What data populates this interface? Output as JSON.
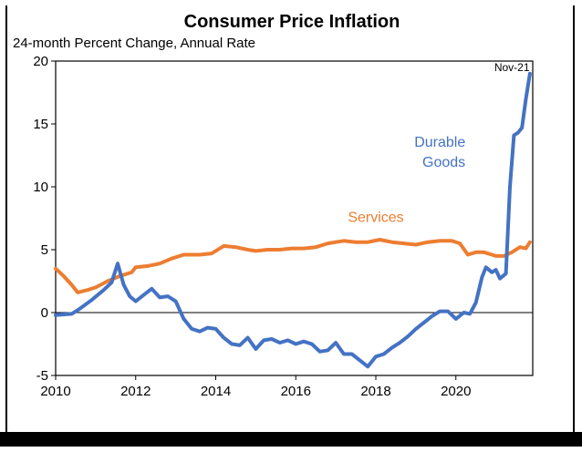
{
  "chart_data": {
    "type": "line",
    "title": "Consumer Price Inflation",
    "subtitle": "24-month Percent Change, Annual Rate",
    "xlabel": "",
    "ylabel": "",
    "xlim": [
      2010,
      2021.92
    ],
    "ylim": [
      -5,
      20
    ],
    "x_ticks": [
      "2010",
      "2012",
      "2014",
      "2016",
      "2018",
      "2020"
    ],
    "y_ticks": [
      "20",
      "15",
      "10",
      "5",
      "0",
      "-5"
    ],
    "grid": false,
    "zero_line": true,
    "annotations": [
      {
        "text": "Nov-21",
        "x": 2021.4,
        "y": 19.2
      },
      {
        "text": "Durable",
        "x": 2019.6,
        "y": 13.2,
        "series": "Durable Goods"
      },
      {
        "text": "Goods",
        "x": 2019.7,
        "y": 11.6,
        "series": "Durable Goods"
      },
      {
        "text": "Services",
        "x": 2018.0,
        "y": 7.2,
        "series": "Services"
      }
    ],
    "series": [
      {
        "name": "Durable Goods",
        "color": "#4472C4",
        "points": [
          [
            2010.0,
            -0.2
          ],
          [
            2010.4,
            -0.1
          ],
          [
            2010.6,
            0.3
          ],
          [
            2010.9,
            1.0
          ],
          [
            2011.2,
            1.8
          ],
          [
            2011.4,
            2.4
          ],
          [
            2011.55,
            3.9
          ],
          [
            2011.7,
            2.2
          ],
          [
            2011.85,
            1.3
          ],
          [
            2012.0,
            0.9
          ],
          [
            2012.2,
            1.4
          ],
          [
            2012.4,
            1.9
          ],
          [
            2012.6,
            1.2
          ],
          [
            2012.8,
            1.3
          ],
          [
            2013.0,
            0.9
          ],
          [
            2013.2,
            -0.5
          ],
          [
            2013.4,
            -1.3
          ],
          [
            2013.6,
            -1.5
          ],
          [
            2013.8,
            -1.2
          ],
          [
            2014.0,
            -1.3
          ],
          [
            2014.2,
            -2.0
          ],
          [
            2014.4,
            -2.5
          ],
          [
            2014.6,
            -2.6
          ],
          [
            2014.8,
            -2.0
          ],
          [
            2015.0,
            -2.9
          ],
          [
            2015.2,
            -2.2
          ],
          [
            2015.4,
            -2.1
          ],
          [
            2015.6,
            -2.4
          ],
          [
            2015.8,
            -2.2
          ],
          [
            2016.0,
            -2.5
          ],
          [
            2016.2,
            -2.3
          ],
          [
            2016.4,
            -2.5
          ],
          [
            2016.6,
            -3.1
          ],
          [
            2016.8,
            -3.0
          ],
          [
            2017.0,
            -2.4
          ],
          [
            2017.2,
            -3.3
          ],
          [
            2017.4,
            -3.3
          ],
          [
            2017.6,
            -3.8
          ],
          [
            2017.8,
            -4.3
          ],
          [
            2018.0,
            -3.5
          ],
          [
            2018.2,
            -3.3
          ],
          [
            2018.4,
            -2.8
          ],
          [
            2018.6,
            -2.4
          ],
          [
            2018.8,
            -1.9
          ],
          [
            2019.0,
            -1.3
          ],
          [
            2019.2,
            -0.8
          ],
          [
            2019.4,
            -0.3
          ],
          [
            2019.6,
            0.1
          ],
          [
            2019.8,
            0.1
          ],
          [
            2020.0,
            -0.5
          ],
          [
            2020.2,
            0.0
          ],
          [
            2020.35,
            -0.1
          ],
          [
            2020.5,
            0.8
          ],
          [
            2020.65,
            2.8
          ],
          [
            2020.75,
            3.6
          ],
          [
            2020.9,
            3.2
          ],
          [
            2021.0,
            3.4
          ],
          [
            2021.1,
            2.7
          ],
          [
            2021.25,
            3.1
          ],
          [
            2021.35,
            10.0
          ],
          [
            2021.45,
            14.1
          ],
          [
            2021.55,
            14.3
          ],
          [
            2021.65,
            14.7
          ],
          [
            2021.75,
            17.0
          ],
          [
            2021.85,
            19.0
          ]
        ]
      },
      {
        "name": "Services",
        "color": "#ED7D31",
        "points": [
          [
            2010.0,
            3.5
          ],
          [
            2010.2,
            2.9
          ],
          [
            2010.4,
            2.2
          ],
          [
            2010.55,
            1.6
          ],
          [
            2010.8,
            1.8
          ],
          [
            2011.0,
            2.0
          ],
          [
            2011.3,
            2.5
          ],
          [
            2011.6,
            2.9
          ],
          [
            2011.9,
            3.2
          ],
          [
            2012.0,
            3.6
          ],
          [
            2012.3,
            3.7
          ],
          [
            2012.6,
            3.9
          ],
          [
            2012.9,
            4.3
          ],
          [
            2013.2,
            4.6
          ],
          [
            2013.6,
            4.6
          ],
          [
            2013.9,
            4.7
          ],
          [
            2014.2,
            5.3
          ],
          [
            2014.5,
            5.2
          ],
          [
            2014.8,
            5.0
          ],
          [
            2015.0,
            4.9
          ],
          [
            2015.3,
            5.0
          ],
          [
            2015.6,
            5.0
          ],
          [
            2015.9,
            5.1
          ],
          [
            2016.2,
            5.1
          ],
          [
            2016.5,
            5.2
          ],
          [
            2016.8,
            5.5
          ],
          [
            2017.0,
            5.6
          ],
          [
            2017.2,
            5.7
          ],
          [
            2017.5,
            5.6
          ],
          [
            2017.8,
            5.6
          ],
          [
            2018.1,
            5.8
          ],
          [
            2018.4,
            5.6
          ],
          [
            2018.7,
            5.5
          ],
          [
            2019.0,
            5.4
          ],
          [
            2019.3,
            5.6
          ],
          [
            2019.6,
            5.7
          ],
          [
            2019.9,
            5.7
          ],
          [
            2020.1,
            5.5
          ],
          [
            2020.3,
            4.6
          ],
          [
            2020.5,
            4.8
          ],
          [
            2020.7,
            4.8
          ],
          [
            2020.9,
            4.6
          ],
          [
            2021.0,
            4.5
          ],
          [
            2021.2,
            4.5
          ],
          [
            2021.4,
            4.8
          ],
          [
            2021.6,
            5.2
          ],
          [
            2021.75,
            5.1
          ],
          [
            2021.85,
            5.6
          ]
        ]
      }
    ]
  }
}
